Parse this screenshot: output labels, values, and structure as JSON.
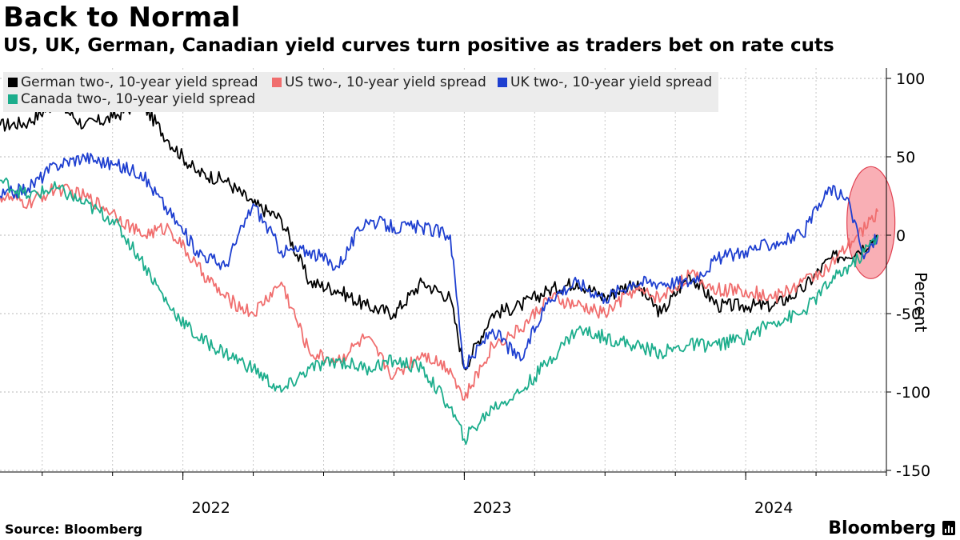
{
  "title": "Back to Normal",
  "subtitle": "US, UK, German, Canadian yield curves turn positive as traders bet on rate cuts",
  "source": "Source: Bloomberg",
  "brand": "Bloomberg",
  "brand_icon": "bloomberg-terminal-icon",
  "chart_data": {
    "type": "line",
    "title": "Back to Normal",
    "xlabel": "",
    "ylabel": "Percent",
    "ylim": [
      -150,
      100
    ],
    "yticks": [
      100,
      50,
      0,
      -50,
      -100,
      -150
    ],
    "ytick_labels": [
      "100",
      "50",
      "0",
      "-50",
      "-100",
      "-150"
    ],
    "xlim": [
      2021.35,
      2024.5
    ],
    "xticks": [
      2022,
      2023,
      2024
    ],
    "xtick_labels": [
      "2022",
      "2023",
      "2024"
    ],
    "grid": true,
    "legend_position": "top-left",
    "annotation": "red ellipse highlighting latest readings (mid-2024)",
    "series": [
      {
        "name": "German two-, 10-year yield spread",
        "color": "#000000",
        "x": [
          2021.35,
          2021.45,
          2021.55,
          2021.65,
          2021.75,
          2021.85,
          2021.95,
          2022.05,
          2022.15,
          2022.25,
          2022.35,
          2022.45,
          2022.55,
          2022.65,
          2022.75,
          2022.85,
          2022.95,
          2023.0,
          2023.1,
          2023.2,
          2023.3,
          2023.4,
          2023.5,
          2023.6,
          2023.7,
          2023.8,
          2023.9,
          2024.0,
          2024.1,
          2024.2,
          2024.3,
          2024.4,
          2024.47
        ],
        "values": [
          70,
          72,
          85,
          70,
          75,
          85,
          60,
          40,
          35,
          20,
          10,
          -30,
          -35,
          -45,
          -50,
          -30,
          -40,
          -85,
          -50,
          -45,
          -35,
          -30,
          -40,
          -30,
          -50,
          -25,
          -45,
          -45,
          -45,
          -35,
          -15,
          -10,
          0
        ]
      },
      {
        "name": "US two-, 10-year yield spread",
        "color": "#f06e6e",
        "x": [
          2021.35,
          2021.45,
          2021.55,
          2021.65,
          2021.75,
          2021.85,
          2021.95,
          2022.05,
          2022.15,
          2022.25,
          2022.35,
          2022.45,
          2022.55,
          2022.65,
          2022.75,
          2022.85,
          2022.95,
          2023.0,
          2023.1,
          2023.2,
          2023.3,
          2023.4,
          2023.5,
          2023.6,
          2023.7,
          2023.8,
          2023.9,
          2024.0,
          2024.1,
          2024.2,
          2024.3,
          2024.4,
          2024.47
        ],
        "values": [
          25,
          20,
          30,
          25,
          15,
          0,
          5,
          -20,
          -40,
          -50,
          -30,
          -75,
          -80,
          -65,
          -90,
          -75,
          -85,
          -105,
          -70,
          -60,
          -40,
          -45,
          -50,
          -35,
          -40,
          -25,
          -35,
          -35,
          -40,
          -30,
          -20,
          0,
          15
        ]
      },
      {
        "name": "UK two-, 10-year yield spread",
        "color": "#1e3fd0",
        "x": [
          2021.35,
          2021.45,
          2021.55,
          2021.65,
          2021.75,
          2021.85,
          2021.95,
          2022.05,
          2022.15,
          2022.25,
          2022.35,
          2022.45,
          2022.55,
          2022.65,
          2022.75,
          2022.85,
          2022.95,
          2023.0,
          2023.1,
          2023.2,
          2023.3,
          2023.4,
          2023.5,
          2023.6,
          2023.7,
          2023.8,
          2023.9,
          2024.0,
          2024.1,
          2024.2,
          2024.3,
          2024.37,
          2024.42,
          2024.47
        ],
        "values": [
          25,
          30,
          45,
          50,
          45,
          40,
          15,
          -10,
          -20,
          20,
          -10,
          -10,
          -20,
          10,
          5,
          5,
          0,
          -85,
          -60,
          -80,
          -40,
          -30,
          -40,
          -30,
          -30,
          -30,
          -15,
          -10,
          -5,
          0,
          30,
          20,
          -15,
          0
        ]
      },
      {
        "name": "Canada two-, 10-year yield spread",
        "color": "#1cad8c",
        "x": [
          2021.35,
          2021.45,
          2021.55,
          2021.65,
          2021.75,
          2021.85,
          2021.95,
          2022.05,
          2022.15,
          2022.25,
          2022.35,
          2022.45,
          2022.55,
          2022.65,
          2022.75,
          2022.85,
          2022.95,
          2023.0,
          2023.1,
          2023.2,
          2023.3,
          2023.4,
          2023.5,
          2023.6,
          2023.7,
          2023.8,
          2023.9,
          2024.0,
          2024.1,
          2024.2,
          2024.3,
          2024.4,
          2024.47
        ],
        "values": [
          35,
          25,
          30,
          20,
          10,
          -15,
          -45,
          -65,
          -75,
          -85,
          -100,
          -85,
          -80,
          -85,
          -80,
          -85,
          -110,
          -130,
          -110,
          -100,
          -80,
          -60,
          -65,
          -70,
          -75,
          -70,
          -70,
          -65,
          -55,
          -50,
          -30,
          -15,
          0
        ]
      }
    ]
  }
}
